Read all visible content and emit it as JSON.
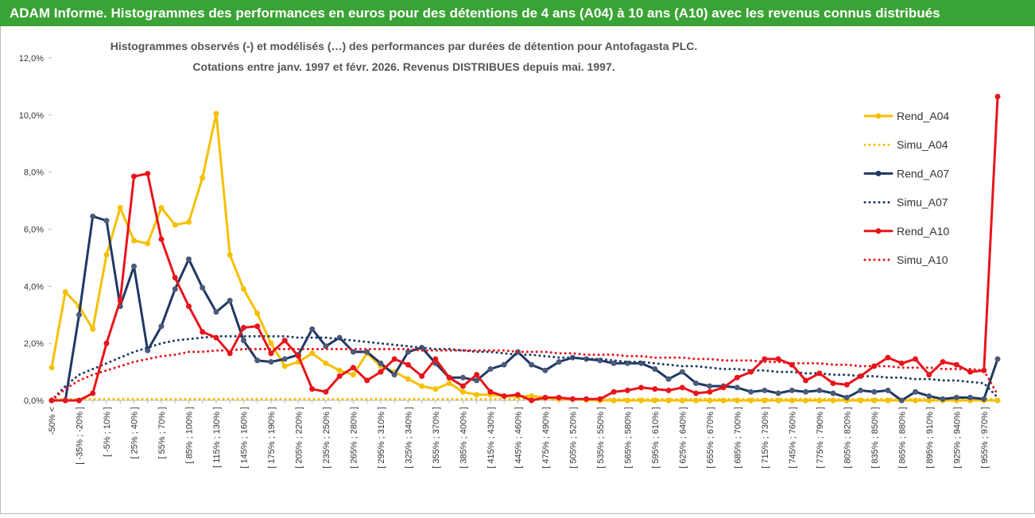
{
  "header": "ADAM Informe. Histogrammes des performances en euros pour des détentions de 4 ans (A04) à 10 ans (A10) avec les revenus connus distribués",
  "chart_data": {
    "type": "line",
    "title": [
      "Histogrammes observés (-) et modélisés (…) des performances par durées de détention pour Antofagasta PLC.",
      "Cotations entre janv. 1997 et févr. 2026. Revenus DISTRIBUES depuis mai. 1997."
    ],
    "categories": [
      "-50% <",
      null,
      "[ -35% ; -20% ]",
      null,
      "[ -5% ; 10% ]",
      null,
      "[ 25% ; 40% ]",
      null,
      "[ 55% ; 70% ]",
      null,
      "[ 85% ; 100% ]",
      null,
      "[ 115% ; 130% ]",
      null,
      "[ 145% ; 160% ]",
      null,
      "[ 175% ; 190% ]",
      null,
      "[ 205% ; 220% ]",
      null,
      "[ 235% ; 250% ]",
      null,
      "[ 265% ; 280% ]",
      null,
      "[ 295% ; 310% ]",
      null,
      "[ 325% ; 340% ]",
      null,
      "[ 355% ; 370% ]",
      null,
      "[ 385% ; 400% ]",
      null,
      "[ 415% ; 430% ]",
      null,
      "[ 445% ; 460% ]",
      null,
      "[ 475% ; 490% ]",
      null,
      "[ 505% ; 520% ]",
      null,
      "[ 535% ; 550% ]",
      null,
      "[ 565% ; 580% ]",
      null,
      "[ 595% ; 610% ]",
      null,
      "[ 625% ; 640% ]",
      null,
      "[ 655% ; 670% ]",
      null,
      "[ 685% ; 700% ]",
      null,
      "[ 715% ; 730% ]",
      null,
      "[ 745% ; 760% ]",
      null,
      "[ 775% ; 790% ]",
      null,
      "[ 805% ; 820% ]",
      null,
      "[ 835% ; 850% ]",
      null,
      "[ 865% ; 880% ]",
      null,
      "[ 895% ; 910% ]",
      null,
      "[ 925% ; 940% ]",
      null,
      "[ 955% ; 970% ]",
      null
    ],
    "ylim": [
      0,
      12
    ],
    "yticks": [
      {
        "value": 0,
        "label": "0,0%"
      },
      {
        "value": 2,
        "label": "2,0%"
      },
      {
        "value": 4,
        "label": "4,0%"
      },
      {
        "value": 6,
        "label": "6,0%"
      },
      {
        "value": 8,
        "label": "8,0%"
      },
      {
        "value": 10,
        "label": "10,0%"
      },
      {
        "value": 12,
        "label": "12,0%"
      }
    ],
    "series": [
      {
        "name": "Rend_A04",
        "color": "#f5c000",
        "style": "solid",
        "values": [
          1.15,
          3.8,
          3.3,
          2.5,
          5.1,
          6.75,
          5.6,
          5.5,
          6.75,
          6.15,
          6.25,
          7.8,
          10.05,
          5.1,
          3.9,
          3.05,
          2.0,
          1.2,
          1.35,
          1.65,
          1.3,
          1.05,
          0.9,
          1.65,
          1.2,
          1.0,
          0.75,
          0.5,
          0.4,
          0.6,
          0.3,
          0.2,
          0.2,
          0.15,
          0.15,
          0.15,
          0.1,
          0.05,
          0.05,
          0.02,
          0,
          0,
          0,
          0,
          0,
          0,
          0,
          0,
          0,
          0,
          0,
          0,
          0,
          0,
          0,
          0,
          0,
          0,
          0,
          0,
          0,
          0,
          0,
          0,
          0,
          0,
          0,
          0,
          0,
          0
        ]
      },
      {
        "name": "Simu_A04",
        "color": "#f5c000",
        "style": "dotted",
        "values": [
          0.05,
          0.05,
          0.05,
          0.05,
          0.05,
          0.05,
          0.05,
          0.05,
          0.05,
          0.05,
          0.05,
          0.05,
          0.05,
          0.05,
          0.05,
          0.05,
          0.05,
          0.05,
          0.05,
          0.05,
          0.05,
          0.05,
          0.05,
          0.05,
          0.05,
          0.05,
          0.05,
          0.05,
          0.05,
          0.05,
          0.05,
          0.05,
          0.05,
          0.05,
          0.05,
          0.05,
          0.05,
          0.05,
          0.05,
          0.05,
          0.05,
          0.05,
          0.05,
          0.05,
          0.05,
          0.05,
          0.05,
          0.05,
          0.05,
          0.05,
          0.05,
          0.05,
          0.05,
          0.05,
          0.05,
          0.05,
          0.05,
          0.05,
          0.05,
          0.05,
          0.05,
          0.05,
          0.05,
          0.05,
          0.05,
          0.05,
          0.05,
          0.05,
          0.05,
          0.05
        ]
      },
      {
        "name": "Rend_A07",
        "color": "#1f3864",
        "style": "solid",
        "values": [
          0,
          0,
          3.0,
          6.45,
          6.3,
          3.3,
          4.7,
          1.75,
          2.6,
          3.9,
          4.95,
          3.95,
          3.1,
          3.5,
          2.1,
          1.4,
          1.35,
          1.45,
          1.6,
          2.5,
          1.9,
          2.2,
          1.7,
          1.7,
          1.3,
          0.9,
          1.7,
          1.85,
          1.3,
          0.8,
          0.8,
          0.7,
          1.1,
          1.25,
          1.7,
          1.25,
          1.05,
          1.35,
          1.5,
          1.45,
          1.4,
          1.3,
          1.3,
          1.3,
          1.1,
          0.75,
          1.0,
          0.6,
          0.5,
          0.5,
          0.45,
          0.3,
          0.35,
          0.25,
          0.35,
          0.3,
          0.35,
          0.25,
          0.1,
          0.35,
          0.3,
          0.35,
          0.0,
          0.3,
          0.15,
          0.05,
          0.1,
          0.1,
          0.05,
          1.45
        ]
      },
      {
        "name": "Simu_A07",
        "color": "#1f3864",
        "style": "dotted",
        "values": [
          0.0,
          0.5,
          0.9,
          1.1,
          1.3,
          1.5,
          1.7,
          1.85,
          2.0,
          2.1,
          2.15,
          2.2,
          2.25,
          2.25,
          2.25,
          2.25,
          2.25,
          2.25,
          2.2,
          2.2,
          2.2,
          2.15,
          2.1,
          2.05,
          2.0,
          1.95,
          1.9,
          1.85,
          1.8,
          1.8,
          1.75,
          1.7,
          1.7,
          1.65,
          1.6,
          1.6,
          1.55,
          1.5,
          1.5,
          1.45,
          1.45,
          1.4,
          1.35,
          1.35,
          1.3,
          1.25,
          1.2,
          1.2,
          1.15,
          1.1,
          1.1,
          1.05,
          1.05,
          1.0,
          1.0,
          0.95,
          0.95,
          0.9,
          0.9,
          0.85,
          0.85,
          0.8,
          0.8,
          0.75,
          0.75,
          0.7,
          0.7,
          0.65,
          0.6,
          0.1
        ]
      },
      {
        "name": "Rend_A10",
        "color": "#e8141b",
        "style": "solid",
        "values": [
          0,
          0,
          0,
          0.25,
          2.0,
          3.5,
          7.85,
          7.95,
          5.65,
          4.3,
          3.3,
          2.4,
          2.2,
          1.65,
          2.55,
          2.6,
          1.65,
          2.1,
          1.55,
          0.4,
          0.3,
          0.85,
          1.15,
          0.7,
          1.0,
          1.45,
          1.25,
          0.85,
          1.45,
          0.8,
          0.5,
          0.9,
          0.3,
          0.15,
          0.2,
          0.0,
          0.1,
          0.1,
          0.05,
          0.05,
          0.05,
          0.3,
          0.35,
          0.45,
          0.4,
          0.35,
          0.45,
          0.25,
          0.3,
          0.45,
          0.8,
          1.0,
          1.45,
          1.45,
          1.25,
          0.7,
          0.95,
          0.6,
          0.55,
          0.85,
          1.2,
          1.5,
          1.3,
          1.45,
          0.9,
          1.35,
          1.25,
          1.0,
          1.05,
          10.65
        ]
      },
      {
        "name": "Simu_A10",
        "color": "#e8141b",
        "style": "dotted",
        "values": [
          0.0,
          0.4,
          0.7,
          0.9,
          1.05,
          1.2,
          1.35,
          1.45,
          1.55,
          1.6,
          1.7,
          1.7,
          1.75,
          1.75,
          1.8,
          1.8,
          1.8,
          1.8,
          1.8,
          1.8,
          1.8,
          1.8,
          1.8,
          1.8,
          1.8,
          1.8,
          1.8,
          1.75,
          1.75,
          1.75,
          1.75,
          1.75,
          1.75,
          1.75,
          1.7,
          1.7,
          1.7,
          1.65,
          1.65,
          1.6,
          1.6,
          1.6,
          1.55,
          1.55,
          1.5,
          1.5,
          1.5,
          1.45,
          1.45,
          1.4,
          1.4,
          1.4,
          1.35,
          1.35,
          1.3,
          1.3,
          1.3,
          1.25,
          1.25,
          1.2,
          1.2,
          1.2,
          1.15,
          1.15,
          1.15,
          1.1,
          1.1,
          1.1,
          1.05,
          0.2
        ]
      }
    ]
  }
}
